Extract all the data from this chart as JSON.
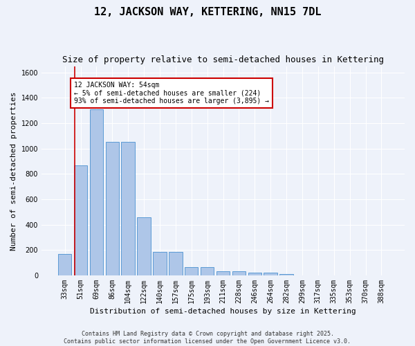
{
  "title": "12, JACKSON WAY, KETTERING, NN15 7DL",
  "subtitle": "Size of property relative to semi-detached houses in Kettering",
  "xlabel": "Distribution of semi-detached houses by size in Kettering",
  "ylabel": "Number of semi-detached properties",
  "categories": [
    "33sqm",
    "51sqm",
    "69sqm",
    "86sqm",
    "104sqm",
    "122sqm",
    "140sqm",
    "157sqm",
    "175sqm",
    "193sqm",
    "211sqm",
    "228sqm",
    "246sqm",
    "264sqm",
    "282sqm",
    "299sqm",
    "317sqm",
    "335sqm",
    "353sqm",
    "370sqm",
    "388sqm"
  ],
  "values": [
    170,
    870,
    1310,
    1055,
    1055,
    460,
    185,
    185,
    65,
    65,
    35,
    30,
    20,
    20,
    10,
    0,
    0,
    0,
    0,
    0,
    0
  ],
  "bar_color": "#aec6e8",
  "bar_edge_color": "#5b9bd5",
  "annotation_text": "12 JACKSON WAY: 54sqm\n← 5% of semi-detached houses are smaller (224)\n93% of semi-detached houses are larger (3,895) →",
  "red_line_color": "#cc0000",
  "background_color": "#eef2fa",
  "grid_color": "#ffffff",
  "footer_line1": "Contains HM Land Registry data © Crown copyright and database right 2025.",
  "footer_line2": "Contains public sector information licensed under the Open Government Licence v3.0.",
  "ylim": [
    0,
    1650
  ],
  "title_fontsize": 11,
  "subtitle_fontsize": 9,
  "axis_label_fontsize": 8,
  "tick_fontsize": 7,
  "annotation_fontsize": 7,
  "footer_fontsize": 6,
  "ylabel_fontsize": 8
}
